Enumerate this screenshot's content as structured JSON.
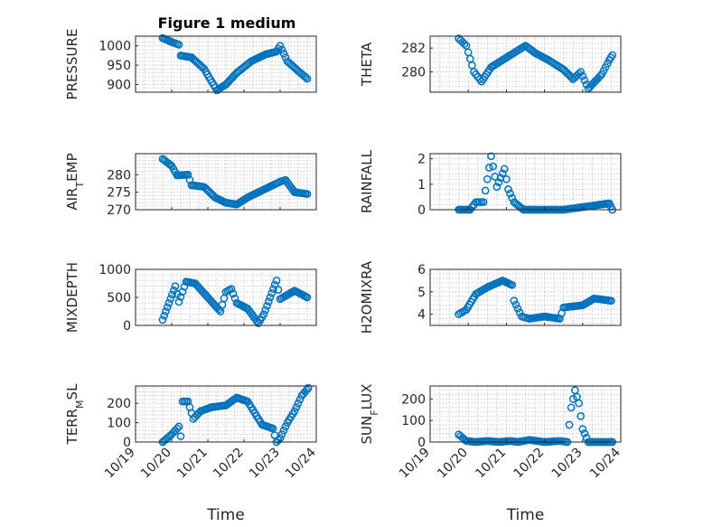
{
  "figure": {
    "title": "Figure 1 medium",
    "marker_color": "#0072BD"
  },
  "chart_data": [
    {
      "type": "scatter",
      "ylabel": "PRESSURE",
      "xlabel": "",
      "xlim": [
        0,
        5
      ],
      "ylim": [
        880,
        1025
      ],
      "yticks": [
        900,
        950,
        1000
      ],
      "ytick_labels": [
        "900",
        "950",
        "1000"
      ],
      "grid": true,
      "keypoints": [
        [
          0.75,
          1020
        ],
        [
          1.0,
          1010
        ],
        [
          1.2,
          1003
        ],
        [
          1.25,
          975
        ],
        [
          1.55,
          970
        ],
        [
          1.9,
          940
        ],
        [
          2.25,
          885
        ],
        [
          2.5,
          900
        ],
        [
          2.8,
          930
        ],
        [
          3.2,
          960
        ],
        [
          3.6,
          978
        ],
        [
          3.9,
          985
        ],
        [
          4.0,
          1000
        ],
        [
          4.2,
          960
        ],
        [
          4.5,
          935
        ],
        [
          4.75,
          915
        ]
      ]
    },
    {
      "type": "scatter",
      "ylabel": "THETA",
      "xlabel": "",
      "xlim": [
        0,
        5
      ],
      "ylim": [
        278.3,
        283.0
      ],
      "yticks": [
        280,
        282
      ],
      "ytick_labels": [
        "280",
        "282"
      ],
      "grid": true,
      "keypoints": [
        [
          0.75,
          282.8
        ],
        [
          0.95,
          282.2
        ],
        [
          1.15,
          280.0
        ],
        [
          1.35,
          279.2
        ],
        [
          1.6,
          280.4
        ],
        [
          1.9,
          281.0
        ],
        [
          2.2,
          281.6
        ],
        [
          2.5,
          282.2
        ],
        [
          2.75,
          281.6
        ],
        [
          3.1,
          281.0
        ],
        [
          3.5,
          280.2
        ],
        [
          3.75,
          279.4
        ],
        [
          3.95,
          280.0
        ],
        [
          4.15,
          278.6
        ],
        [
          4.5,
          279.8
        ],
        [
          4.7,
          281.0
        ],
        [
          4.78,
          281.4
        ]
      ]
    },
    {
      "type": "scatter",
      "ylabel": "AIR_TEMP",
      "xlabel": "",
      "xlim": [
        0,
        5
      ],
      "ylim": [
        270,
        286
      ],
      "yticks": [
        270,
        275,
        280
      ],
      "ytick_labels": [
        "270",
        "275",
        "280"
      ],
      "grid": true,
      "keypoints": [
        [
          0.75,
          284.5
        ],
        [
          1.0,
          282.5
        ],
        [
          1.15,
          279.8
        ],
        [
          1.45,
          280.0
        ],
        [
          1.55,
          277.0
        ],
        [
          1.9,
          276.5
        ],
        [
          2.2,
          273.5
        ],
        [
          2.5,
          272.0
        ],
        [
          2.8,
          271.5
        ],
        [
          3.1,
          273.5
        ],
        [
          3.5,
          275.5
        ],
        [
          3.8,
          277.0
        ],
        [
          4.0,
          278.0
        ],
        [
          4.15,
          278.5
        ],
        [
          4.4,
          275.0
        ],
        [
          4.75,
          274.5
        ]
      ]
    },
    {
      "type": "scatter",
      "ylabel": "RAINFALL",
      "xlabel": "",
      "xlim": [
        0,
        5
      ],
      "ylim": [
        0,
        2.2
      ],
      "yticks": [
        0,
        1,
        2
      ],
      "ytick_labels": [
        "0",
        "1",
        "2"
      ],
      "grid": true,
      "keypoints": [
        [
          0.75,
          0
        ],
        [
          1.05,
          0
        ],
        [
          1.2,
          0.3
        ],
        [
          1.4,
          0.3
        ],
        [
          1.6,
          2.1
        ],
        [
          1.75,
          0.9
        ],
        [
          1.95,
          1.6
        ],
        [
          2.05,
          0.8
        ],
        [
          2.2,
          0.3
        ],
        [
          2.45,
          0
        ],
        [
          3.5,
          0
        ],
        [
          4.7,
          0.25
        ],
        [
          4.78,
          0
        ]
      ]
    },
    {
      "type": "scatter",
      "ylabel": "MIXDEPTH",
      "xlabel": "",
      "xlim": [
        0,
        5
      ],
      "ylim": [
        0,
        1000
      ],
      "yticks": [
        0,
        500,
        1000
      ],
      "ytick_labels": [
        "0",
        "500",
        "1000"
      ],
      "grid": true,
      "keypoints": [
        [
          0.75,
          100
        ],
        [
          1.1,
          700
        ],
        [
          1.2,
          420
        ],
        [
          1.4,
          780
        ],
        [
          1.65,
          750
        ],
        [
          2.0,
          500
        ],
        [
          2.35,
          250
        ],
        [
          2.5,
          600
        ],
        [
          2.65,
          650
        ],
        [
          2.8,
          400
        ],
        [
          3.1,
          300
        ],
        [
          3.4,
          40
        ],
        [
          3.55,
          200
        ],
        [
          3.9,
          800
        ],
        [
          4.0,
          470
        ],
        [
          4.4,
          620
        ],
        [
          4.75,
          500
        ]
      ]
    },
    {
      "type": "scatter",
      "ylabel": "H2OMIXRA",
      "xlabel": "",
      "xlim": [
        0,
        5
      ],
      "ylim": [
        3.5,
        6
      ],
      "yticks": [
        4,
        5,
        6
      ],
      "ytick_labels": [
        "4",
        "5",
        "6"
      ],
      "grid": true,
      "keypoints": [
        [
          0.75,
          4.0
        ],
        [
          0.95,
          4.2
        ],
        [
          1.2,
          4.9
        ],
        [
          1.5,
          5.2
        ],
        [
          1.9,
          5.5
        ],
        [
          2.15,
          5.3
        ],
        [
          2.2,
          4.6
        ],
        [
          2.4,
          3.9
        ],
        [
          2.6,
          3.8
        ],
        [
          3.0,
          3.9
        ],
        [
          3.4,
          3.8
        ],
        [
          3.5,
          4.3
        ],
        [
          4.0,
          4.4
        ],
        [
          4.3,
          4.7
        ],
        [
          4.75,
          4.6
        ]
      ]
    },
    {
      "type": "scatter",
      "ylabel": "TERR_MSL",
      "xlabel": "Time",
      "xlim": [
        0,
        5
      ],
      "ylim": [
        0,
        290
      ],
      "yticks": [
        0,
        100,
        200
      ],
      "ytick_labels": [
        "0",
        "100",
        "200"
      ],
      "xtick_labels": [
        "10/19",
        "10/20",
        "10/21",
        "10/22",
        "10/23",
        "10/24"
      ],
      "grid": true,
      "keypoints": [
        [
          0.75,
          0
        ],
        [
          1.0,
          40
        ],
        [
          1.2,
          80
        ],
        [
          1.25,
          30
        ],
        [
          1.3,
          210
        ],
        [
          1.45,
          210
        ],
        [
          1.6,
          120
        ],
        [
          1.8,
          160
        ],
        [
          2.1,
          180
        ],
        [
          2.5,
          190
        ],
        [
          2.8,
          230
        ],
        [
          3.1,
          210
        ],
        [
          3.3,
          150
        ],
        [
          3.5,
          90
        ],
        [
          3.8,
          70
        ],
        [
          3.9,
          0
        ],
        [
          4.0,
          20
        ],
        [
          4.2,
          100
        ],
        [
          4.4,
          160
        ],
        [
          4.6,
          240
        ],
        [
          4.78,
          280
        ]
      ]
    },
    {
      "type": "scatter",
      "ylabel": "SUN_FLUX",
      "xlabel": "Time",
      "xlim": [
        0,
        5
      ],
      "ylim": [
        0,
        260
      ],
      "yticks": [
        0,
        100,
        200
      ],
      "ytick_labels": [
        "0",
        "100",
        "200"
      ],
      "xtick_labels": [
        "10/19",
        "10/20",
        "10/21",
        "10/22",
        "10/23",
        "10/24"
      ],
      "grid": true,
      "keypoints": [
        [
          0.75,
          35
        ],
        [
          0.95,
          5
        ],
        [
          1.2,
          0
        ],
        [
          1.5,
          5
        ],
        [
          1.8,
          0
        ],
        [
          2.1,
          5
        ],
        [
          2.3,
          0
        ],
        [
          2.6,
          10
        ],
        [
          3.0,
          0
        ],
        [
          3.4,
          5
        ],
        [
          3.6,
          0
        ],
        [
          3.7,
          160
        ],
        [
          3.8,
          240
        ],
        [
          3.9,
          180
        ],
        [
          4.0,
          60
        ],
        [
          4.15,
          0
        ],
        [
          4.5,
          0
        ],
        [
          4.78,
          0
        ]
      ]
    }
  ]
}
